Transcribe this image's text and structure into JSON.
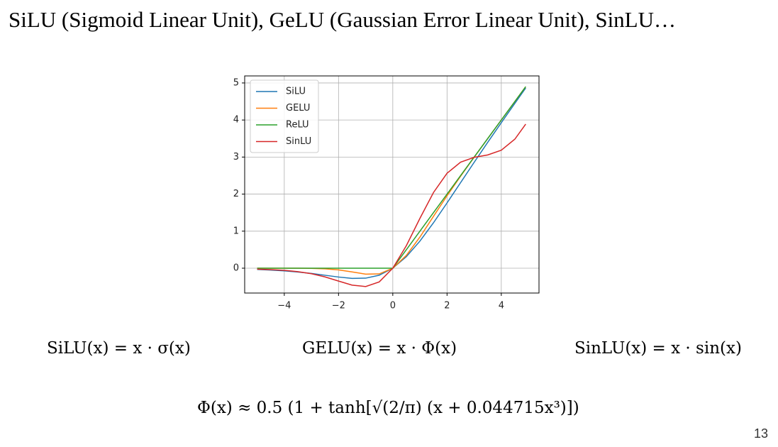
{
  "title": "SiLU (Sigmoid Linear Unit), GeLU (Gaussian Error Linear Unit), SinLU…",
  "formulas": [
    "SiLU(x) = x · σ(x)",
    "GELU(x) = x · Φ(x)",
    "SinLU(x) = x · sin(x)",
    "Φ(x) ≈ 0.5 (1 + tanh[√(2/π) (x + 0.044715x³)])"
  ],
  "page_number": "13",
  "chart_data": {
    "type": "line",
    "x": [
      -5,
      -4.5,
      -4,
      -3.5,
      -3,
      -2.5,
      -2,
      -1.5,
      -1,
      -0.5,
      0,
      0.5,
      1,
      1.5,
      2,
      2.5,
      3,
      3.5,
      4,
      4.5,
      4.9
    ],
    "series": [
      {
        "name": "SiLU",
        "color": "#1f77b4",
        "values": [
          -0.0335,
          -0.0497,
          -0.072,
          -0.1025,
          -0.142,
          -0.19,
          -0.238,
          -0.274,
          -0.269,
          -0.189,
          0,
          0.311,
          0.731,
          1.226,
          1.762,
          2.31,
          2.858,
          3.398,
          3.928,
          4.45,
          4.864
        ]
      },
      {
        "name": "GELU",
        "color": "#ff7f0e",
        "values": [
          0,
          0,
          -0.0001,
          -0.0008,
          -0.004,
          -0.0155,
          -0.0455,
          -0.1,
          -0.159,
          -0.154,
          0,
          0.346,
          0.841,
          1.4,
          1.954,
          2.484,
          2.996,
          3.499,
          4,
          4.5,
          4.9
        ]
      },
      {
        "name": "ReLU",
        "color": "#2ca02c",
        "values": [
          0,
          0,
          0,
          0,
          0,
          0,
          0,
          0,
          0,
          0,
          0,
          0.5,
          1,
          1.5,
          2,
          2.5,
          3,
          3.5,
          4,
          4.5,
          4.9
        ]
      },
      {
        "name": "SinLU",
        "color": "#d62728",
        "values": [
          -0.027,
          -0.0387,
          -0.0584,
          -0.0923,
          -0.149,
          -0.235,
          -0.347,
          -0.456,
          -0.495,
          -0.37,
          0,
          0.609,
          1.346,
          2.042,
          2.563,
          2.863,
          2.992,
          3.057,
          3.185,
          3.483,
          3.889
        ]
      }
    ],
    "xlim": [
      -5.46,
      5.39
    ],
    "ylim": [
      -0.67,
      5.19
    ],
    "xticks": [
      {
        "value": -4,
        "label": "−4"
      },
      {
        "value": -2,
        "label": "−2"
      },
      0,
      2,
      4
    ],
    "yticks": [
      0,
      1,
      2,
      3,
      4,
      5
    ],
    "grid": true,
    "legend": "upper-left"
  }
}
